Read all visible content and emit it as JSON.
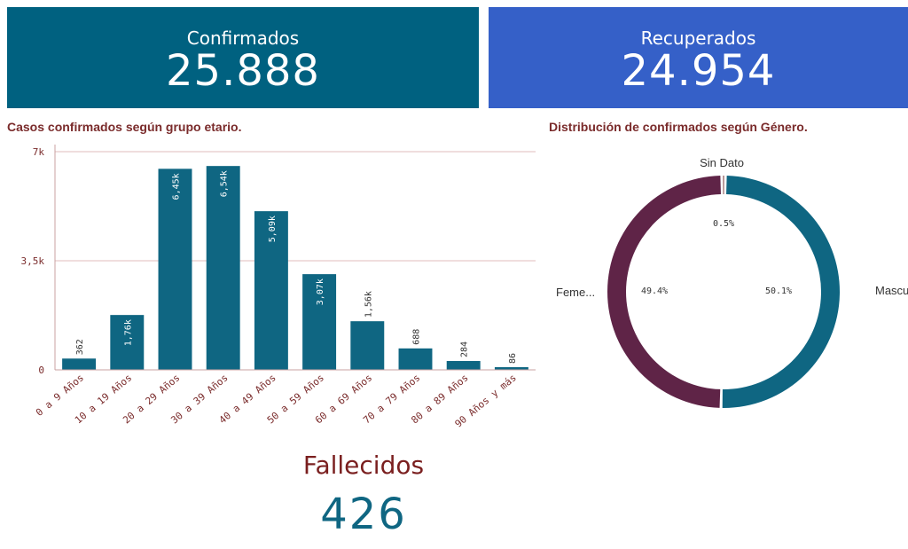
{
  "kpis": {
    "confirmed": {
      "label": "Confirmados",
      "value": "25.888",
      "color": "#006180"
    },
    "recovered": {
      "label": "Recuperados",
      "value": "24.954",
      "color": "#3560c8"
    }
  },
  "deaths": {
    "label": "Fallecidos",
    "value": "426"
  },
  "chart_data": [
    {
      "type": "bar",
      "title": "Casos confirmados según grupo etario.",
      "categories": [
        "0 a 9 Años",
        "10 a 19 Años",
        "20 a 29 Años",
        "30 a 39 Años",
        "40 a 49 Años",
        "50 a 59 Años",
        "60 a 69 Años",
        "70 a 79 Años",
        "80 a 89 Años",
        "90 Años y más"
      ],
      "values": [
        362,
        1760,
        6450,
        6540,
        5090,
        3070,
        1560,
        688,
        284,
        86
      ],
      "value_labels": [
        "362",
        "1,76k",
        "6,45k",
        "6,54k",
        "5,09k",
        "3,07k",
        "1,56k",
        "688",
        "284",
        "86"
      ],
      "ylim": [
        0,
        7000
      ],
      "yticks": [
        0,
        3500,
        7000
      ],
      "ytick_labels": [
        "0",
        "3,5k",
        "7k"
      ],
      "grid": true,
      "bar_color": "#0f6682",
      "axis_color": "#7a2b2b"
    },
    {
      "type": "pie",
      "title": "Distribución de confirmados según Género.",
      "donut": true,
      "slices": [
        {
          "label": "Mascu...",
          "value": 50.1,
          "pct_label": "50.1%",
          "color": "#0f6682"
        },
        {
          "label": "Feme...",
          "value": 49.4,
          "pct_label": "49.4%",
          "color": "#5f2447"
        },
        {
          "label": "Sin Dato",
          "value": 0.5,
          "pct_label": "0.5%",
          "color": "#6b2626"
        }
      ]
    }
  ]
}
